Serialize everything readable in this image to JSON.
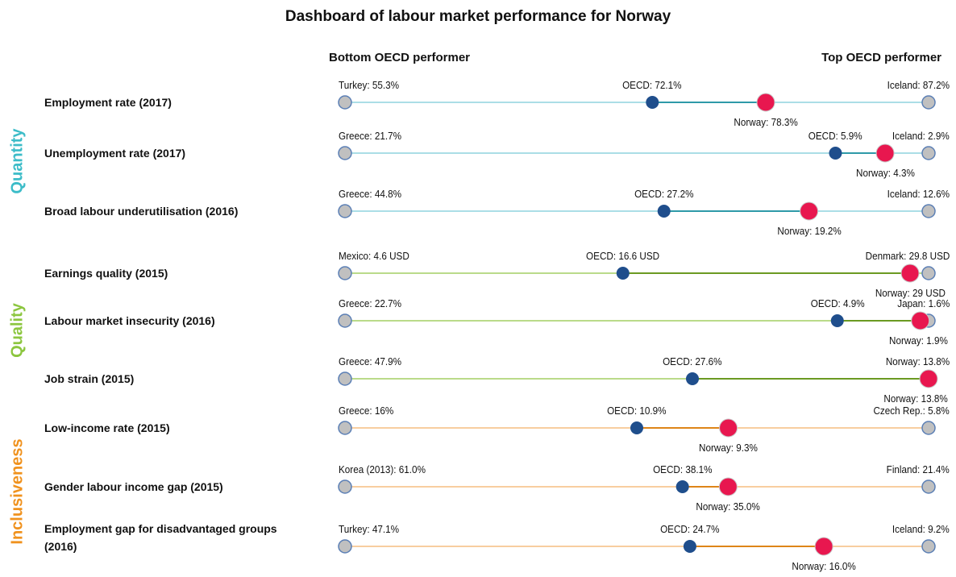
{
  "chart_data": {
    "type": "dumbbell",
    "title": "Dashboard of labour market performance for Norway",
    "left_header": "Bottom OECD performer",
    "right_header": "Top OECD performer",
    "groups": [
      {
        "name": "Quantity",
        "color": "#3cbcc8",
        "track": "#8fd3dd",
        "accent": "#2e9aa8"
      },
      {
        "name": "Quality",
        "color": "#8cc63f",
        "track": "#a3cf63",
        "accent": "#6b9a22"
      },
      {
        "name": "Inclusiveness",
        "color": "#f0921e",
        "track": "#f6bd80",
        "accent": "#de8518"
      }
    ],
    "colors": {
      "oecd": "#1f4e8c",
      "norway": "#e8174f",
      "end": "#c0c0c0"
    },
    "rows": [
      {
        "label": "Employment rate (2017)",
        "group": 0,
        "bottom": {
          "value": 55.3,
          "label": "Turkey: 55.3%"
        },
        "oecd": {
          "value": 72.1,
          "label": "OECD: 72.1%"
        },
        "norway": {
          "value": 78.3,
          "label": "Norway: 78.3%"
        },
        "top": {
          "value": 87.2,
          "label": "Iceland: 87.2%"
        }
      },
      {
        "label": "Unemployment rate (2017)",
        "group": 0,
        "bottom": {
          "value": 21.7,
          "label": "Greece: 21.7%"
        },
        "oecd": {
          "value": 5.9,
          "label": "OECD: 5.9%"
        },
        "norway": {
          "value": 4.3,
          "label": "Norway: 4.3%"
        },
        "top": {
          "value": 2.9,
          "label": "Iceland: 2.9%"
        }
      },
      {
        "label": "Broad labour underutilisation (2016)",
        "group": 0,
        "bottom": {
          "value": 44.8,
          "label": "Greece: 44.8%"
        },
        "oecd": {
          "value": 27.2,
          "label": "OECD: 27.2%"
        },
        "norway": {
          "value": 19.2,
          "label": "Norway: 19.2%"
        },
        "top": {
          "value": 12.6,
          "label": "Iceland: 12.6%"
        }
      },
      {
        "label": "Earnings quality  (2015)",
        "group": 1,
        "bottom": {
          "value": 4.6,
          "label": "Mexico: 4.6 USD"
        },
        "oecd": {
          "value": 16.6,
          "label": "OECD: 16.6 USD"
        },
        "norway": {
          "value": 29,
          "label": "Norway: 29 USD"
        },
        "top": {
          "value": 29.8,
          "label": "Denmark: 29.8 USD"
        }
      },
      {
        "label": "Labour market insecurity  (2016)",
        "group": 1,
        "bottom": {
          "value": 22.7,
          "label": "Greece: 22.7%"
        },
        "oecd": {
          "value": 4.9,
          "label": "OECD: 4.9%"
        },
        "norway": {
          "value": 1.9,
          "label": "Norway: 1.9%"
        },
        "top": {
          "value": 1.6,
          "label": "Japan: 1.6%"
        }
      },
      {
        "label": "Job strain  (2015)",
        "group": 1,
        "bottom": {
          "value": 47.9,
          "label": "Greece: 47.9%"
        },
        "oecd": {
          "value": 27.6,
          "label": "OECD: 27.6%"
        },
        "norway": {
          "value": 13.8,
          "label": "Norway: 13.8%"
        },
        "top": {
          "value": 13.8,
          "label": "Norway: 13.8%"
        }
      },
      {
        "label": "Low-income rate  (2015)",
        "group": 2,
        "bottom": {
          "value": 16,
          "label": "Greece: 16%"
        },
        "oecd": {
          "value": 10.9,
          "label": "OECD: 10.9%"
        },
        "norway": {
          "value": 9.3,
          "label": "Norway: 9.3%"
        },
        "top": {
          "value": 5.8,
          "label": "Czech Rep.: 5.8%"
        }
      },
      {
        "label": "Gender labour income gap (2015)",
        "group": 2,
        "bottom": {
          "value": 61.0,
          "label": "Korea (2013): 61.0%"
        },
        "oecd": {
          "value": 38.1,
          "label": "OECD: 38.1%"
        },
        "norway": {
          "value": 35.0,
          "label": "Norway: 35.0%"
        },
        "top": {
          "value": 21.4,
          "label": "Finland: 21.4%"
        }
      },
      {
        "label": "Employment gap for disadvantaged groups (2016)",
        "group": 2,
        "bottom": {
          "value": 47.1,
          "label": "Turkey: 47.1%"
        },
        "oecd": {
          "value": 24.7,
          "label": "OECD: 24.7%"
        },
        "norway": {
          "value": 16.0,
          "label": "Norway: 16.0%"
        },
        "top": {
          "value": 9.2,
          "label": "Iceland: 9.2%"
        }
      }
    ]
  }
}
